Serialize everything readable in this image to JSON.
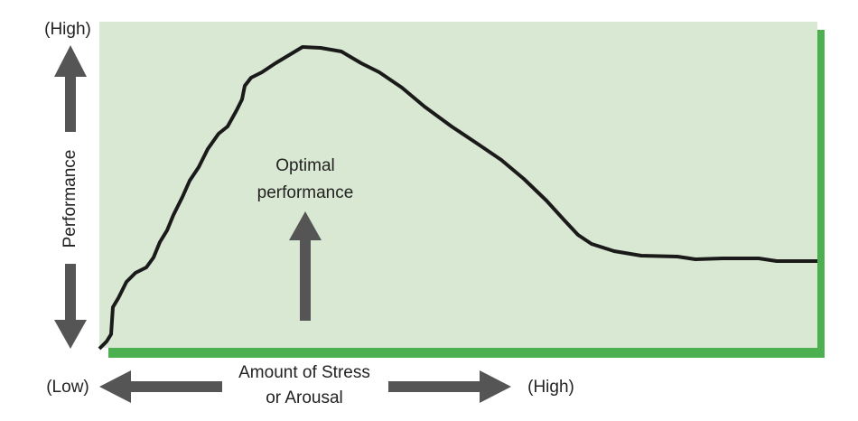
{
  "y_axis": {
    "top_label": "(High)",
    "title": "Performance"
  },
  "x_axis": {
    "left_label": "(Low)",
    "title_lines": [
      "Amount of Stress",
      "or Arousal"
    ],
    "right_label": "(High)"
  },
  "annotation": {
    "lines": [
      "Optimal",
      "performance"
    ]
  }
}
